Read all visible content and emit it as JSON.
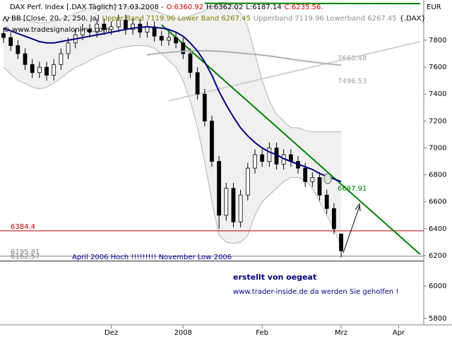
{
  "header": {
    "title": "DAX Perf. Index [.DAX  Täglich] 17.03.2008 -",
    "ohlc": [
      {
        "text": "O:6360.92",
        "color": "#d00000"
      },
      {
        "text": "H:6362.02",
        "color": "#000000"
      },
      {
        "text": "L:6187.14",
        "color": "#000000"
      },
      {
        "text": "C:6235.56.",
        "color": "#d00000"
      }
    ],
    "indicator": "BB [Close, 20, 2, 250, Ja]",
    "bands": "Upper Band 7119.96 Lower Band 6267.45",
    "bands_alt": "Upperband 7119.96 Lowerband 6267.45",
    "symbol": "{.DAX}",
    "copyright": "© www.tradesignalonline.com",
    "currency": "EUR"
  },
  "chart_data": [
    {
      "type": "candlestick",
      "categories": [
        null,
        null,
        null,
        null,
        null,
        null,
        null,
        null,
        null,
        null,
        null,
        null,
        null,
        null,
        null,
        "Dez",
        null,
        null,
        null,
        null,
        null,
        null,
        null,
        null,
        null,
        "2008",
        null,
        null,
        null,
        null,
        null,
        null,
        null,
        null,
        null,
        null,
        "Feb",
        null,
        null,
        null,
        null,
        null,
        null,
        null,
        null,
        null,
        null,
        "Mrz",
        null,
        null,
        null,
        null,
        null,
        null,
        null,
        "Apr",
        null,
        null,
        null
      ],
      "candles": {
        "open": [
          7850,
          7820,
          7760,
          7700,
          7620,
          7560,
          7600,
          7540,
          7620,
          7700,
          7780,
          7840,
          7880,
          7860,
          7920,
          7880,
          7900,
          7950,
          7880,
          7920,
          7860,
          7900,
          7830,
          7800,
          7820,
          7780,
          7700,
          7560,
          7400,
          7200,
          6900,
          6500,
          6700,
          6450,
          6650,
          6850,
          6950,
          6900,
          7000,
          6880,
          6950,
          6900,
          6850,
          6750,
          6780,
          6650,
          6550,
          6360.92,
          null,
          null,
          null,
          null,
          null,
          null,
          null,
          null,
          null,
          null,
          null
        ],
        "high": [
          7890,
          7860,
          7800,
          7740,
          7660,
          7640,
          7640,
          7660,
          7740,
          7820,
          7880,
          7920,
          7920,
          7960,
          7960,
          7940,
          7990,
          7990,
          7960,
          7960,
          7940,
          7940,
          7870,
          7860,
          7860,
          7820,
          7740,
          7600,
          7440,
          7240,
          6940,
          6740,
          6740,
          6690,
          6890,
          6990,
          6990,
          7040,
          7040,
          6990,
          6990,
          6940,
          6890,
          6820,
          6820,
          6690,
          6590,
          6362.02,
          null,
          null,
          null,
          null,
          null,
          null,
          null,
          null,
          null,
          null,
          null
        ],
        "low": [
          7780,
          7720,
          7660,
          7580,
          7520,
          7520,
          7500,
          7500,
          7580,
          7660,
          7740,
          7800,
          7820,
          7820,
          7840,
          7840,
          7860,
          7840,
          7840,
          7820,
          7820,
          7790,
          7760,
          7760,
          7740,
          7660,
          7520,
          7360,
          7160,
          6860,
          6400,
          6460,
          6410,
          6410,
          6610,
          6810,
          6860,
          6860,
          6840,
          6840,
          6860,
          6810,
          6710,
          6710,
          6610,
          6510,
          6360,
          6187.14,
          null,
          null,
          null,
          null,
          null,
          null,
          null,
          null,
          null,
          null,
          null
        ],
        "close": [
          7820,
          7760,
          7700,
          7620,
          7560,
          7600,
          7540,
          7620,
          7700,
          7780,
          7840,
          7880,
          7860,
          7920,
          7880,
          7900,
          7950,
          7880,
          7920,
          7860,
          7900,
          7830,
          7800,
          7820,
          7780,
          7700,
          7560,
          7400,
          7200,
          6900,
          6500,
          6700,
          6450,
          6650,
          6850,
          6950,
          6900,
          7000,
          6880,
          6950,
          6900,
          6850,
          6750,
          6780,
          6650,
          6550,
          6400,
          6235.56,
          null,
          null,
          null,
          null,
          null,
          null,
          null,
          null,
          null,
          null,
          null
        ],
        "up_color": "#ffffff",
        "down_color": "#000000"
      },
      "bands": {
        "color": "#b4b4b4",
        "fill": "#f0f0f0",
        "upper": [
          7980,
          7970,
          7960,
          7950,
          7940,
          7930,
          7930,
          7940,
          7960,
          7980,
          8000,
          8020,
          8040,
          8050,
          8060,
          8060,
          8060,
          8050,
          8050,
          8040,
          8030,
          8020,
          8000,
          7980,
          7960,
          7960,
          7980,
          8000,
          8020,
          8050,
          8080,
          8080,
          8060,
          8000,
          7900,
          7700,
          7500,
          7350,
          7250,
          7200,
          7150,
          7150,
          7130,
          7120,
          7120,
          7120,
          7120,
          7119.96,
          null,
          null,
          null,
          null,
          null,
          null,
          null,
          null,
          null,
          null,
          null
        ],
        "lower": [
          7600,
          7550,
          7500,
          7480,
          7450,
          7440,
          7450,
          7480,
          7520,
          7560,
          7600,
          7620,
          7650,
          7680,
          7700,
          7720,
          7740,
          7750,
          7760,
          7760,
          7760,
          7740,
          7700,
          7650,
          7600,
          7500,
          7350,
          7150,
          6900,
          6600,
          6350,
          6300,
          6290,
          6300,
          6350,
          6500,
          6600,
          6650,
          6700,
          6750,
          6780,
          6780,
          6760,
          6700,
          6600,
          6500,
          6400,
          6267.45,
          null,
          null,
          null,
          null,
          null,
          null,
          null,
          null,
          null,
          null,
          null
        ]
      },
      "lines": [
        {
          "color": "#b0b0b0",
          "width": 2,
          "values": [
            null,
            null,
            null,
            null,
            null,
            null,
            null,
            null,
            null,
            null,
            null,
            null,
            null,
            null,
            null,
            null,
            null,
            null,
            null,
            null,
            7690,
            7700,
            7705,
            7710,
            7715,
            7718,
            7720,
            7722,
            7722,
            7720,
            7718,
            7715,
            7710,
            7705,
            7700,
            7695,
            7690,
            7683,
            7676,
            7668,
            7660,
            7652,
            7645,
            7638,
            7632,
            7626,
            7620,
            7615,
            null,
            null,
            null,
            null,
            null,
            null,
            null,
            null,
            null,
            null,
            null
          ]
        },
        {
          "color": "#000080",
          "width": 2,
          "values": [
            7890,
            7870,
            7850,
            7830,
            7810,
            7790,
            7780,
            7780,
            7790,
            7800,
            7810,
            7820,
            7830,
            7840,
            7850,
            7860,
            7870,
            7880,
            7890,
            7895,
            7900,
            7895,
            7890,
            7880,
            7860,
            7830,
            7780,
            7720,
            7640,
            7540,
            7420,
            7320,
            7230,
            7150,
            7090,
            7040,
            7000,
            6970,
            6950,
            6920,
            6900,
            6880,
            6860,
            6840,
            6810,
            6790,
            6770,
            6750,
            null,
            null,
            null,
            null,
            null,
            null,
            null,
            null,
            null,
            null,
            null
          ]
        }
      ],
      "trendlines": [
        {
          "color": "#d0d0d0",
          "width": 2,
          "from": [
            23,
            7350
          ],
          "to": [
            58,
            7790
          ]
        },
        {
          "color": "#008000",
          "width": 2,
          "from": [
            22,
            7915
          ],
          "to": [
            58,
            6210
          ]
        },
        {
          "color": "#008000",
          "width": 2,
          "from": [
            28,
            8075
          ],
          "to": [
            58,
            8072
          ]
        }
      ],
      "levels": [
        {
          "value": 7666.48,
          "color": "#a0a0a0",
          "line": false
        },
        {
          "value": 7496.53,
          "color": "#a0a0a0",
          "line": false
        },
        {
          "value": 6697.91,
          "color": "#008000",
          "line": false
        },
        {
          "value": 6384.4,
          "color": "#c00000",
          "line": true
        },
        {
          "value": 6195.81,
          "color": "#808080",
          "line": true
        },
        {
          "value": 6162.57,
          "color": "#808080",
          "line": true
        }
      ],
      "annotations": [
        {
          "text": "April 2006 Hoch !!!!!!!!!  November Low 2006",
          "color": "#0000a0"
        }
      ],
      "ylim": [
        6158,
        8099
      ],
      "yticks": [
        6200,
        6400,
        6600,
        6800,
        7000,
        7200,
        7400,
        7600,
        7800
      ]
    },
    {
      "type": "panel",
      "annotations": [
        {
          "text": "erstellt von oegeat",
          "color": "#000080",
          "bold": true
        },
        {
          "text": "www.trader-inside.de da werden Sie geholfen !",
          "color": "#000080",
          "bold": false
        }
      ],
      "ylim": [
        5761,
        6152
      ],
      "yticks": [
        5800,
        6000
      ]
    }
  ]
}
